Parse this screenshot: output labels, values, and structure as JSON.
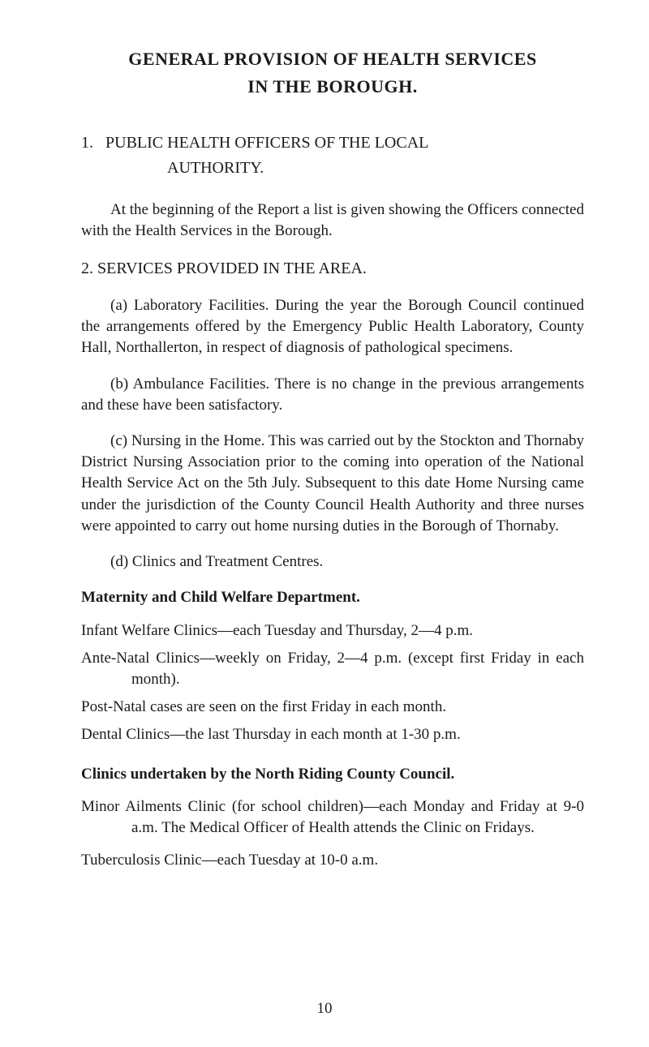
{
  "title_line1": "GENERAL PROVISION OF HEALTH SERVICES",
  "title_line2": "IN THE BOROUGH.",
  "section1": {
    "num": "1.",
    "name": "PUBLIC HEALTH OFFICERS OF THE LOCAL",
    "authority": "AUTHORITY.",
    "para": "At the beginning of the Report a list is given showing the Officers connected with the Health Services in the Borough."
  },
  "section2": {
    "head": "2.  SERVICES PROVIDED IN THE AREA.",
    "a": "(a) Laboratory Facilities.  During the year the Borough Council continued the arrangements offered by the Emergency Public Health Laboratory, County Hall, Northallerton, in respect of diagnosis of pathological specimens.",
    "b": "(b) Ambulance Facilities.  There is no change in the pre­vious arrangements and these have been satisfactory.",
    "c": "(c) Nursing in the Home.   This was carried out by the Stockton and Thornaby District Nursing Association prior to the coming into operation of the National Health Service Act on the 5th July. Subsequent to this date Home Nursing came under the jurisdiction of the County Council Health Authority and three nurses were appointed to carry out home nursing duties in the Borough of Thornaby.",
    "d": "(d) Clinics and Treatment Centres."
  },
  "maternity": {
    "head": "Maternity and Child Welfare Department.",
    "infant": "Infant Welfare Clinics—each Tuesday and Thursday, 2—4 p.m.",
    "ante": "Ante-Natal Clinics—weekly on Friday, 2—4 p.m. (except first Friday in each month).",
    "post": "Post-Natal cases are seen on the first Friday in each month.",
    "dental": "Dental Clinics—the last Thursday in each month at 1-30 p.m."
  },
  "nrcc": {
    "head": "Clinics undertaken by the North Riding County Council.",
    "minor": "Minor Ailments Clinic (for school children)—each Monday and Friday at 9-0 a.m.  The Medical Officer of Health attends the Clinic on Fridays.",
    "tb": "Tuberculosis Clinic—each Tuesday at 10-0 a.m."
  },
  "page_number": "10"
}
